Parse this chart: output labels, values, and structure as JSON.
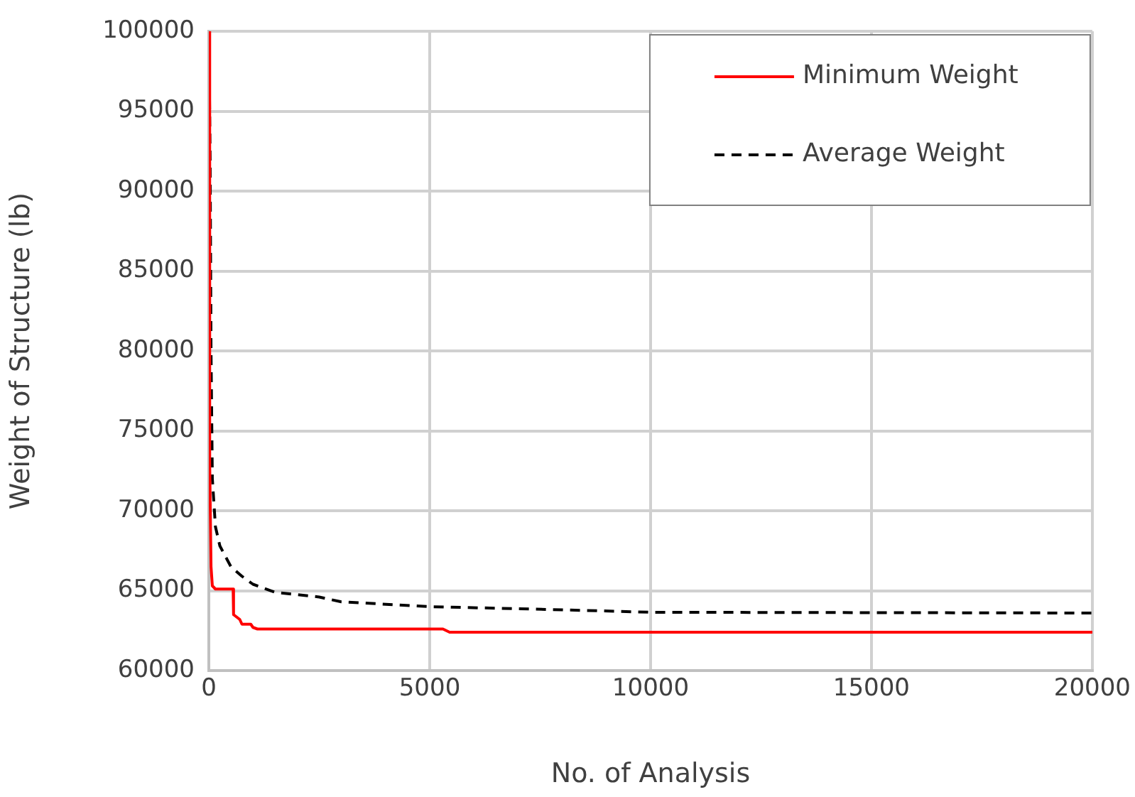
{
  "chart_data": {
    "type": "line",
    "xlabel": "No. of Analysis",
    "ylabel": "Weight of Structure (lb)",
    "xlim": [
      0,
      20000
    ],
    "xticks": [
      0,
      5000,
      10000,
      15000,
      20000
    ],
    "ylim": [
      60000,
      100000
    ],
    "yticks": [
      60000,
      65000,
      70000,
      75000,
      80000,
      85000,
      90000,
      95000,
      100000
    ],
    "grid": true,
    "legend": "top right",
    "marker": "none",
    "series": [
      {
        "name": "Minimum Weight",
        "color": "#ff0000",
        "line_style": "solid",
        "x": [
          0,
          20,
          50,
          80,
          150,
          550,
          560,
          700,
          750,
          950,
          1000,
          1100,
          5300,
          5450,
          20000
        ],
        "values": [
          100000,
          73000,
          66500,
          65300,
          65100,
          65100,
          63500,
          63200,
          62900,
          62900,
          62700,
          62600,
          62600,
          62400,
          62400
        ]
      },
      {
        "name": "Average Weight",
        "color": "#000000",
        "line_style": "dashed",
        "x": [
          0,
          30,
          50,
          80,
          150,
          250,
          500,
          750,
          1000,
          1500,
          2500,
          3000,
          5000,
          8000,
          10000,
          20000
        ],
        "values": [
          100000,
          92000,
          80000,
          72000,
          69000,
          67800,
          66500,
          65900,
          65400,
          64900,
          64600,
          64300,
          64000,
          63800,
          63650,
          63600
        ]
      }
    ]
  }
}
